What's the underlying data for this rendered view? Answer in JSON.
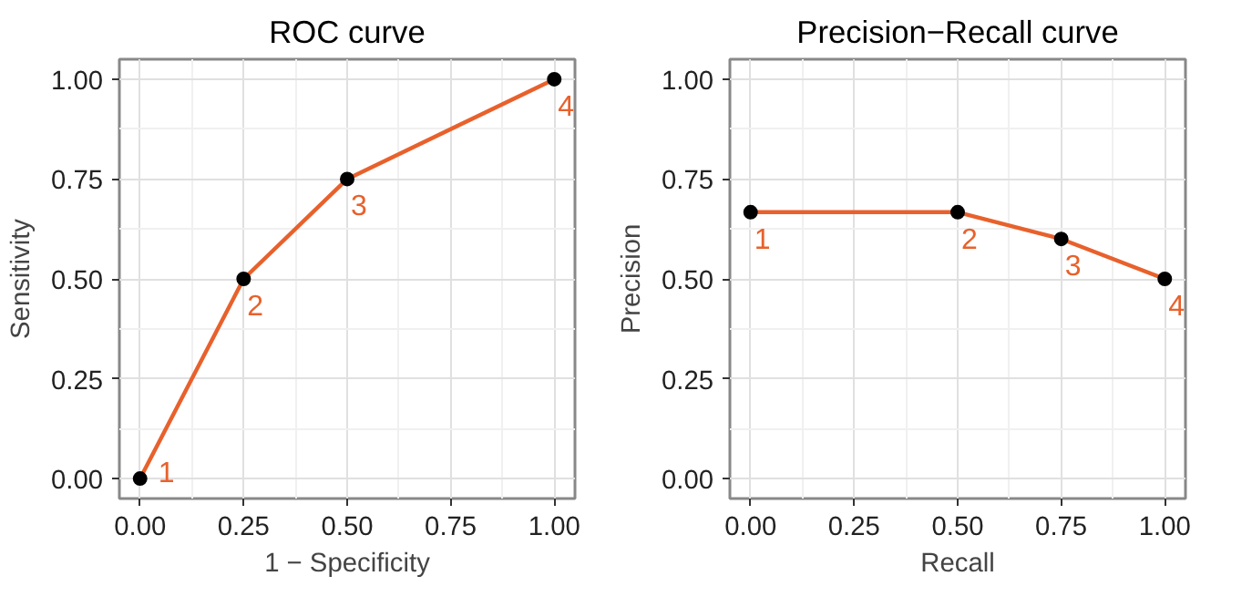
{
  "chart_data": [
    {
      "type": "line",
      "title": "ROC curve",
      "xlabel": "1 − Specificity",
      "ylabel": "Sensitivity",
      "x": [
        0,
        0.25,
        0.5,
        1
      ],
      "series": [
        {
          "color": "#e8612c",
          "values": [
            0,
            0.5,
            0.75,
            1
          ],
          "marker": "none"
        },
        {
          "type": "scatter",
          "color": "#000000",
          "values": [
            0,
            0.5,
            0.75,
            1
          ],
          "marker": "circle"
        }
      ],
      "xlim": [
        -0.05,
        1.05
      ],
      "ylim": [
        -0.05,
        1.05
      ],
      "xticks": [
        {
          "value": 0,
          "label": "0.00"
        },
        {
          "value": 0.25,
          "label": "0.25"
        },
        {
          "value": 0.5,
          "label": "0.50"
        },
        {
          "value": 0.75,
          "label": "0.75"
        },
        {
          "value": 1,
          "label": "1.00"
        }
      ],
      "yticks": [
        {
          "value": 0,
          "label": "0.00"
        },
        {
          "value": 0.25,
          "label": "0.25"
        },
        {
          "value": 0.5,
          "label": "0.50"
        },
        {
          "value": 0.75,
          "label": "0.75"
        },
        {
          "value": 1,
          "label": "1.00"
        }
      ],
      "grid": true,
      "annotations": [
        {
          "text": "1",
          "x": 0,
          "y": 0
        },
        {
          "text": "2",
          "x": 0.25,
          "y": 0.5
        },
        {
          "text": "3",
          "x": 0.5,
          "y": 0.75
        },
        {
          "text": "4",
          "x": 1,
          "y": 1
        }
      ]
    },
    {
      "type": "line",
      "title": "Precision−Recall curve",
      "xlabel": "Recall",
      "ylabel": "Precision",
      "x": [
        0,
        0.5,
        0.75,
        1
      ],
      "series": [
        {
          "color": "#e8612c",
          "values": [
            0.667,
            0.667,
            0.6,
            0.5
          ],
          "marker": "none"
        },
        {
          "type": "scatter",
          "color": "#000000",
          "values": [
            0.667,
            0.667,
            0.6,
            0.5
          ],
          "marker": "circle"
        }
      ],
      "xlim": [
        -0.05,
        1.05
      ],
      "ylim": [
        -0.05,
        1.05
      ],
      "xticks": [
        {
          "value": 0,
          "label": "0.00"
        },
        {
          "value": 0.25,
          "label": "0.25"
        },
        {
          "value": 0.5,
          "label": "0.50"
        },
        {
          "value": 0.75,
          "label": "0.75"
        },
        {
          "value": 1,
          "label": "1.00"
        }
      ],
      "yticks": [
        {
          "value": 0,
          "label": "0.00"
        },
        {
          "value": 0.25,
          "label": "0.25"
        },
        {
          "value": 0.5,
          "label": "0.50"
        },
        {
          "value": 0.75,
          "label": "0.75"
        },
        {
          "value": 1,
          "label": "1.00"
        }
      ],
      "grid": true,
      "annotations": [
        {
          "text": "1",
          "x": 0,
          "y": 0.667
        },
        {
          "text": "2",
          "x": 0.5,
          "y": 0.667
        },
        {
          "text": "3",
          "x": 0.75,
          "y": 0.6
        },
        {
          "text": "4",
          "x": 1,
          "y": 0.5
        }
      ]
    }
  ]
}
